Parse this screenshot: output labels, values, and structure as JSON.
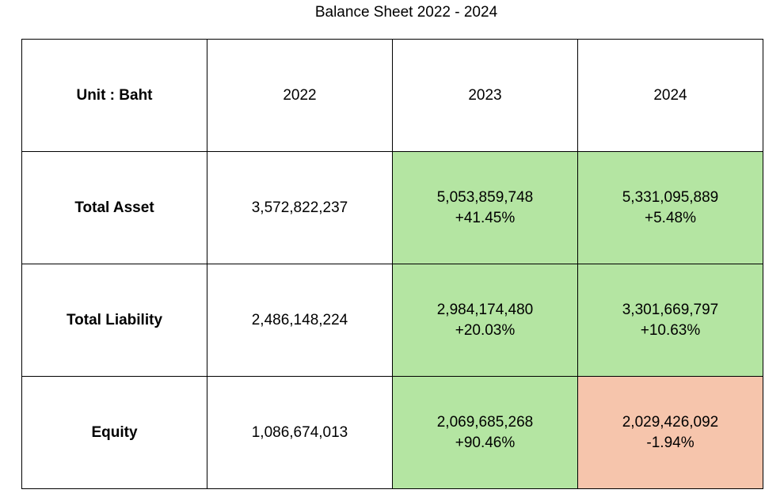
{
  "chart_data": {
    "type": "table",
    "title": "Balance Sheet 2022 - 2024",
    "unit_label": "Unit : Baht",
    "columns": [
      "2022",
      "2023",
      "2024"
    ],
    "colors": {
      "increase": "#b4e5a2",
      "decrease": "#f6c5ac"
    },
    "rows": [
      {
        "label": "Total Asset",
        "cells": [
          {
            "value": "3,572,822,237",
            "change": null,
            "trend": "none"
          },
          {
            "value": "5,053,859,748",
            "change": "+41.45%",
            "trend": "up"
          },
          {
            "value": "5,331,095,889",
            "change": "+5.48%",
            "trend": "up"
          }
        ]
      },
      {
        "label": "Total Liability",
        "cells": [
          {
            "value": "2,486,148,224",
            "change": null,
            "trend": "none"
          },
          {
            "value": "2,984,174,480",
            "change": "+20.03%",
            "trend": "up"
          },
          {
            "value": "3,301,669,797",
            "change": "+10.63%",
            "trend": "up"
          }
        ]
      },
      {
        "label": "Equity",
        "cells": [
          {
            "value": "1,086,674,013",
            "change": null,
            "trend": "none"
          },
          {
            "value": "2,069,685,268",
            "change": "+90.46%",
            "trend": "up"
          },
          {
            "value": "2,029,426,092",
            "change": "-1.94%",
            "trend": "down"
          }
        ]
      }
    ]
  }
}
